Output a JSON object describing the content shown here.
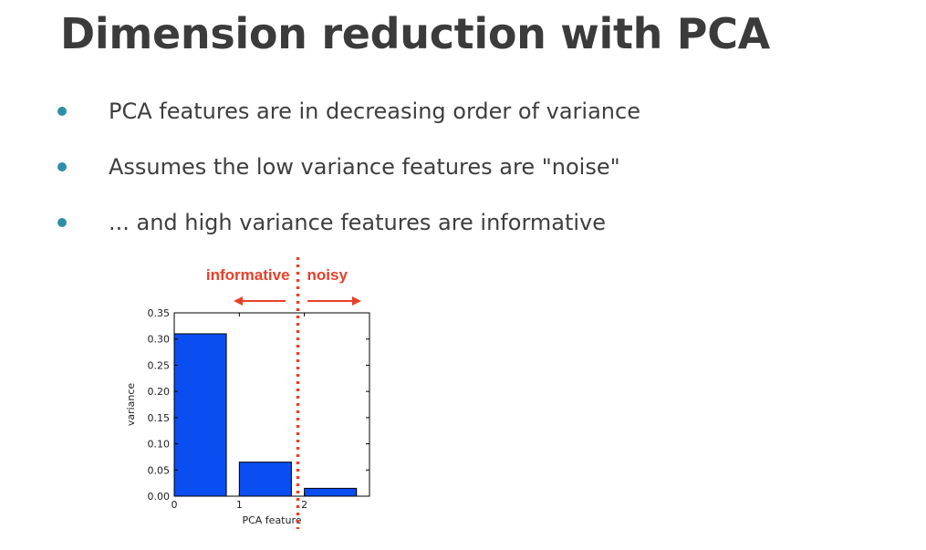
{
  "slide": {
    "title": "Dimension reduction with PCA",
    "bullets": [
      "PCA features are in decreasing order of variance",
      "Assumes the low variance features are \"noise\"",
      "... and high variance features are informative"
    ],
    "bullet_color": "#2f8fa8"
  },
  "chart_data": {
    "type": "bar",
    "x": [
      0,
      1,
      2
    ],
    "values": [
      0.31,
      0.065,
      0.015
    ],
    "xlabel": "PCA feature",
    "ylabel": "variance",
    "xticks": [
      "0",
      "1",
      "2"
    ],
    "yticks": [
      "0.00",
      "0.05",
      "0.10",
      "0.15",
      "0.20",
      "0.25",
      "0.30",
      "0.35"
    ],
    "ylim": [
      0,
      0.35
    ],
    "xlim": [
      0,
      3
    ],
    "bar_color": "#0a4ef2",
    "grid": false,
    "annotations": {
      "left_label": "informative",
      "right_label": "noisy",
      "divider_x": 1.9,
      "color": "#e8402a"
    }
  }
}
